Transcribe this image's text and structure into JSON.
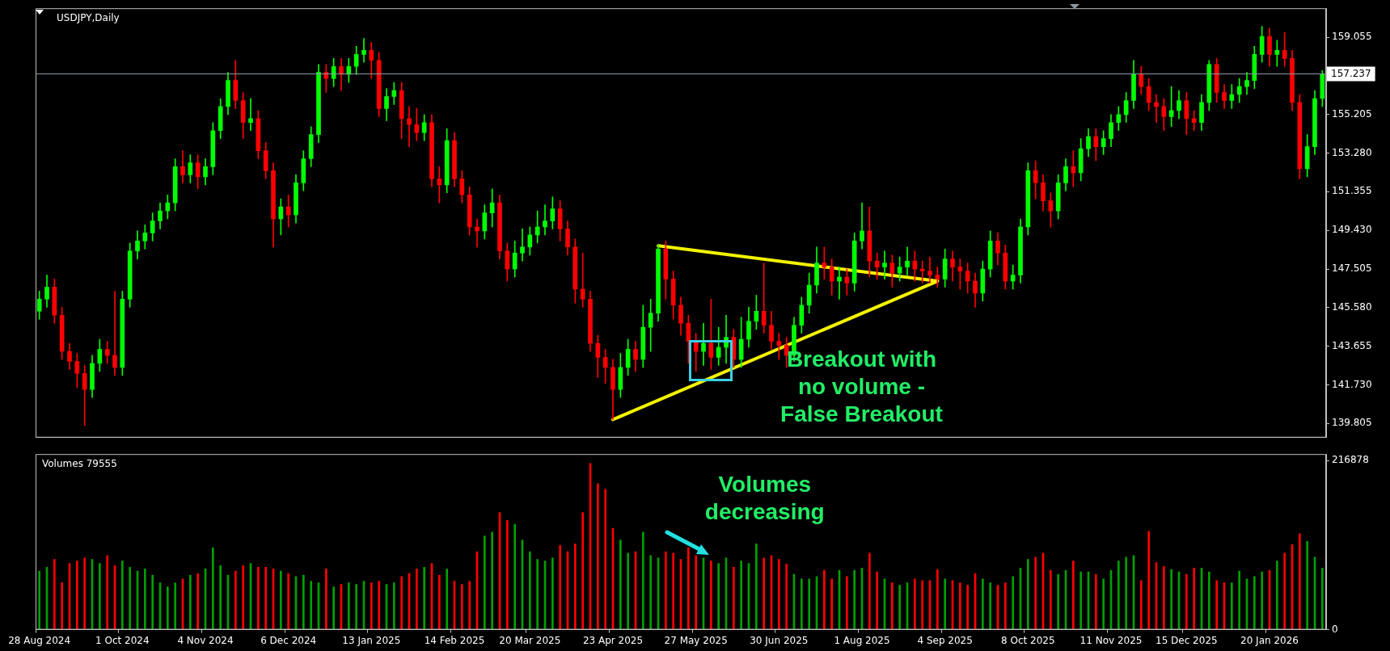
{
  "chart_data": [
    {
      "type": "candlestick",
      "title": "USDJPY,Daily",
      "tick_labels": "y",
      "grid": false,
      "legend": false,
      "categories": [
        null,
        null,
        null,
        null,
        null,
        null,
        null,
        null,
        null,
        null,
        null,
        null,
        null,
        null,
        null,
        null,
        null,
        null,
        null,
        null,
        null,
        null,
        null,
        null,
        null,
        null,
        null,
        null,
        null,
        null,
        null,
        null,
        null,
        null,
        null,
        null,
        null,
        null,
        null,
        null,
        null,
        null,
        null,
        null,
        null,
        null,
        null,
        null,
        null,
        null,
        null,
        null,
        null,
        null,
        null,
        null,
        null,
        null,
        null,
        null,
        null,
        null,
        null,
        null,
        null,
        null,
        null,
        null,
        null,
        null,
        null,
        null,
        null,
        null,
        null,
        null,
        null,
        null,
        null,
        null,
        null,
        null,
        null,
        null,
        null,
        null,
        null,
        null,
        null,
        null,
        null,
        null,
        null,
        null,
        null,
        null,
        null,
        null,
        null,
        null,
        null,
        null,
        null,
        null,
        null,
        null,
        null,
        null,
        null,
        null,
        null,
        null,
        null,
        null,
        null,
        null,
        null,
        null,
        null,
        null,
        null,
        null,
        null,
        null,
        null,
        null,
        null,
        null,
        null,
        null,
        null,
        null,
        null,
        null,
        null,
        null,
        null,
        null,
        null,
        null,
        null,
        null,
        null,
        null,
        null,
        null,
        null,
        null,
        null,
        null,
        null,
        null,
        null,
        null,
        null,
        null,
        null,
        null,
        null,
        null,
        null,
        null,
        null,
        null,
        null,
        null,
        null,
        null,
        null,
        null,
        null
      ],
      "ohlc": [
        [
          145.4,
          146.4,
          145.0,
          146.0
        ],
        [
          146.0,
          147.2,
          145.6,
          146.6
        ],
        [
          146.6,
          147.0,
          144.8,
          145.2
        ],
        [
          145.2,
          145.6,
          143.0,
          143.4
        ],
        [
          143.4,
          143.8,
          142.5,
          142.9
        ],
        [
          142.9,
          143.3,
          141.6,
          142.3
        ],
        [
          142.3,
          142.7,
          139.7,
          141.5
        ],
        [
          141.5,
          143.2,
          141.1,
          142.8
        ],
        [
          142.8,
          144.0,
          142.4,
          143.5
        ],
        [
          143.5,
          143.9,
          142.8,
          143.2
        ],
        [
          143.2,
          146.4,
          142.2,
          142.6
        ],
        [
          142.6,
          146.4,
          142.2,
          146.0
        ],
        [
          146.0,
          148.8,
          145.6,
          148.4
        ],
        [
          148.4,
          149.4,
          148.0,
          148.9
        ],
        [
          148.9,
          149.7,
          148.5,
          149.3
        ],
        [
          149.3,
          150.3,
          148.9,
          149.9
        ],
        [
          149.9,
          150.8,
          149.5,
          150.4
        ],
        [
          150.4,
          151.2,
          150.0,
          150.8
        ],
        [
          150.8,
          153.0,
          150.4,
          152.6
        ],
        [
          152.6,
          153.4,
          151.8,
          152.2
        ],
        [
          152.2,
          153.2,
          151.8,
          152.8
        ],
        [
          152.8,
          153.2,
          151.5,
          152.1
        ],
        [
          152.1,
          153.0,
          151.7,
          152.6
        ],
        [
          152.6,
          154.8,
          152.2,
          154.4
        ],
        [
          154.4,
          156.0,
          154.0,
          155.6
        ],
        [
          155.6,
          157.3,
          155.2,
          156.9
        ],
        [
          156.9,
          157.9,
          155.5,
          155.9
        ],
        [
          155.9,
          156.3,
          154.0,
          154.8
        ],
        [
          154.8,
          156.0,
          154.4,
          155.0
        ],
        [
          155.0,
          155.4,
          153.0,
          153.4
        ],
        [
          153.4,
          153.8,
          152.0,
          152.4
        ],
        [
          152.4,
          152.8,
          148.6,
          150.0
        ],
        [
          150.0,
          151.0,
          149.2,
          150.6
        ],
        [
          150.6,
          151.2,
          149.6,
          150.2
        ],
        [
          150.2,
          152.2,
          149.8,
          151.8
        ],
        [
          151.8,
          153.4,
          151.4,
          153.0
        ],
        [
          153.0,
          154.6,
          152.6,
          154.2
        ],
        [
          154.2,
          157.7,
          153.8,
          157.3
        ],
        [
          157.3,
          157.7,
          156.3,
          157.0
        ],
        [
          157.0,
          158.0,
          156.6,
          157.6
        ],
        [
          157.6,
          158.0,
          156.4,
          157.2
        ],
        [
          157.2,
          158.0,
          156.8,
          157.6
        ],
        [
          157.6,
          158.6,
          157.2,
          158.2
        ],
        [
          158.2,
          159.0,
          157.8,
          158.4
        ],
        [
          158.4,
          158.8,
          157.0,
          157.9
        ],
        [
          157.9,
          158.3,
          155.1,
          155.5
        ],
        [
          155.5,
          156.5,
          154.9,
          156.1
        ],
        [
          156.1,
          156.8,
          155.7,
          156.4
        ],
        [
          156.4,
          156.8,
          154.0,
          155.0
        ],
        [
          155.0,
          155.6,
          153.6,
          154.7
        ],
        [
          154.7,
          155.5,
          153.9,
          154.3
        ],
        [
          154.3,
          155.2,
          153.9,
          154.8
        ],
        [
          154.8,
          155.2,
          151.6,
          152.0
        ],
        [
          152.0,
          152.6,
          150.8,
          151.7
        ],
        [
          151.7,
          154.5,
          151.3,
          153.9
        ],
        [
          153.9,
          154.3,
          151.6,
          152.0
        ],
        [
          152.0,
          152.4,
          150.8,
          151.2
        ],
        [
          151.2,
          151.6,
          149.2,
          149.6
        ],
        [
          149.6,
          150.0,
          148.6,
          149.4
        ],
        [
          149.4,
          150.7,
          149.0,
          150.3
        ],
        [
          150.3,
          151.5,
          149.6,
          150.8
        ],
        [
          150.8,
          151.2,
          148.0,
          148.4
        ],
        [
          148.4,
          148.8,
          146.9,
          147.5
        ],
        [
          147.5,
          148.9,
          147.1,
          148.3
        ],
        [
          148.3,
          149.5,
          147.9,
          148.6
        ],
        [
          148.6,
          149.6,
          148.2,
          149.2
        ],
        [
          149.2,
          150.4,
          148.8,
          149.6
        ],
        [
          149.6,
          150.7,
          149.2,
          149.9
        ],
        [
          149.9,
          151.1,
          149.5,
          150.5
        ],
        [
          150.5,
          150.9,
          148.9,
          149.5
        ],
        [
          149.5,
          149.9,
          148.2,
          148.6
        ],
        [
          148.6,
          149.0,
          145.8,
          146.5
        ],
        [
          146.5,
          148.3,
          145.6,
          146.0
        ],
        [
          146.0,
          146.4,
          143.4,
          143.8
        ],
        [
          143.8,
          144.2,
          142.1,
          143.1
        ],
        [
          143.1,
          143.5,
          141.8,
          142.6
        ],
        [
          142.6,
          143.0,
          140.0,
          141.5
        ],
        [
          141.5,
          143.3,
          141.1,
          142.6
        ],
        [
          142.6,
          144.0,
          142.2,
          143.5
        ],
        [
          143.5,
          143.9,
          142.4,
          143.0
        ],
        [
          143.0,
          145.7,
          142.6,
          144.6
        ],
        [
          144.6,
          146.0,
          143.4,
          145.3
        ],
        [
          145.3,
          148.7,
          144.9,
          148.5
        ],
        [
          148.5,
          148.9,
          146.0,
          147.0
        ],
        [
          147.0,
          147.4,
          145.0,
          145.7
        ],
        [
          145.7,
          146.1,
          144.2,
          144.8
        ],
        [
          144.8,
          145.2,
          142.8,
          143.9
        ],
        [
          143.9,
          144.3,
          142.4,
          143.4
        ],
        [
          143.4,
          144.8,
          142.7,
          143.8
        ],
        [
          143.8,
          146.0,
          142.5,
          143.1
        ],
        [
          143.1,
          144.6,
          142.7,
          143.6
        ],
        [
          143.6,
          145.2,
          142.8,
          144.1
        ],
        [
          144.1,
          144.5,
          142.6,
          143.0
        ],
        [
          143.0,
          145.1,
          142.6,
          144.0
        ],
        [
          144.0,
          145.6,
          143.6,
          144.9
        ],
        [
          144.9,
          146.2,
          144.5,
          145.4
        ],
        [
          145.4,
          147.8,
          144.3,
          144.7
        ],
        [
          144.7,
          145.4,
          143.5,
          143.9
        ],
        [
          143.9,
          144.3,
          143.0,
          143.7
        ],
        [
          143.7,
          144.1,
          142.6,
          143.2
        ],
        [
          143.2,
          145.1,
          142.9,
          144.7
        ],
        [
          144.7,
          146.1,
          144.3,
          145.7
        ],
        [
          145.7,
          147.3,
          145.3,
          146.7
        ],
        [
          146.7,
          148.6,
          146.3,
          147.8
        ],
        [
          147.8,
          148.6,
          147.0,
          147.6
        ],
        [
          147.6,
          148.0,
          146.2,
          146.9
        ],
        [
          146.9,
          147.6,
          146.0,
          147.1
        ],
        [
          147.1,
          147.5,
          146.2,
          146.8
        ],
        [
          146.8,
          149.3,
          146.4,
          148.9
        ],
        [
          148.9,
          150.8,
          148.5,
          149.4
        ],
        [
          149.4,
          150.6,
          147.1,
          147.9
        ],
        [
          147.9,
          148.3,
          147.0,
          147.6
        ],
        [
          147.6,
          148.4,
          147.0,
          147.8
        ],
        [
          147.8,
          148.2,
          146.6,
          147.3
        ],
        [
          147.3,
          148.1,
          146.9,
          147.6
        ],
        [
          147.6,
          148.6,
          147.2,
          147.9
        ],
        [
          147.9,
          148.4,
          146.9,
          147.5
        ],
        [
          147.5,
          147.9,
          146.8,
          147.4
        ],
        [
          147.4,
          148.1,
          146.8,
          147.2
        ],
        [
          147.2,
          147.6,
          146.6,
          147.0
        ],
        [
          147.0,
          148.5,
          146.6,
          148.0
        ],
        [
          148.0,
          148.4,
          146.9,
          147.6
        ],
        [
          147.6,
          148.0,
          146.5,
          147.4
        ],
        [
          147.4,
          147.8,
          146.3,
          146.9
        ],
        [
          146.9,
          147.3,
          145.6,
          146.3
        ],
        [
          146.3,
          147.9,
          145.9,
          147.5
        ],
        [
          147.5,
          149.4,
          147.1,
          148.9
        ],
        [
          148.9,
          149.3,
          147.7,
          148.3
        ],
        [
          148.3,
          148.7,
          146.5,
          146.9
        ],
        [
          146.9,
          147.7,
          146.5,
          147.2
        ],
        [
          147.2,
          150.0,
          146.8,
          149.6
        ],
        [
          149.6,
          152.8,
          149.2,
          152.4
        ],
        [
          152.4,
          152.9,
          151.0,
          151.8
        ],
        [
          151.8,
          152.2,
          150.4,
          150.9
        ],
        [
          150.9,
          151.3,
          149.6,
          150.4
        ],
        [
          150.4,
          152.2,
          150.0,
          151.8
        ],
        [
          151.8,
          153.0,
          151.4,
          152.6
        ],
        [
          152.6,
          153.4,
          151.6,
          152.3
        ],
        [
          152.3,
          154.0,
          151.9,
          153.5
        ],
        [
          153.5,
          154.5,
          153.1,
          154.1
        ],
        [
          154.1,
          154.5,
          152.9,
          153.6
        ],
        [
          153.6,
          154.4,
          153.2,
          154.0
        ],
        [
          154.0,
          155.2,
          153.6,
          154.8
        ],
        [
          154.8,
          155.6,
          154.4,
          155.2
        ],
        [
          155.2,
          156.3,
          154.8,
          155.9
        ],
        [
          155.9,
          157.9,
          155.5,
          157.2
        ],
        [
          157.2,
          157.6,
          156.2,
          156.6
        ],
        [
          156.6,
          157.0,
          155.4,
          155.8
        ],
        [
          155.8,
          156.2,
          154.8,
          155.6
        ],
        [
          155.6,
          156.0,
          154.4,
          155.1
        ],
        [
          155.1,
          156.6,
          154.6,
          155.4
        ],
        [
          155.4,
          156.4,
          155.0,
          155.9
        ],
        [
          155.9,
          156.3,
          154.2,
          155.0
        ],
        [
          155.0,
          155.4,
          154.4,
          154.8
        ],
        [
          154.8,
          156.2,
          154.4,
          155.8
        ],
        [
          155.8,
          157.9,
          155.4,
          157.7
        ],
        [
          157.7,
          158.0,
          155.8,
          156.3
        ],
        [
          156.3,
          156.7,
          155.5,
          155.9
        ],
        [
          155.9,
          156.7,
          155.5,
          156.2
        ],
        [
          156.2,
          157.0,
          155.8,
          156.6
        ],
        [
          156.6,
          157.3,
          156.2,
          156.9
        ],
        [
          156.9,
          158.6,
          156.5,
          158.2
        ],
        [
          158.2,
          159.6,
          157.8,
          159.1
        ],
        [
          159.1,
          159.5,
          157.6,
          158.2
        ],
        [
          158.2,
          158.9,
          157.6,
          158.4
        ],
        [
          158.4,
          159.3,
          157.6,
          158.0
        ],
        [
          158.0,
          158.4,
          155.4,
          155.8
        ],
        [
          155.8,
          156.2,
          152.0,
          152.5
        ],
        [
          152.5,
          154.2,
          152.1,
          153.6
        ],
        [
          153.6,
          156.4,
          153.2,
          156.0
        ],
        [
          156.0,
          157.4,
          155.6,
          157.2
        ]
      ],
      "colors": [
        "#00ff00",
        "#00ff00",
        "#ff0000",
        "#ff0000",
        "#ff0000",
        "#ff0000",
        "#ff0000",
        "#00ff00",
        "#00ff00",
        "#ff0000",
        "#ff0000",
        "#00ff00",
        "#00ff00",
        "#00ff00",
        "#00ff00",
        "#00ff00",
        "#00ff00",
        "#00ff00",
        "#00ff00",
        "#ff0000",
        "#00ff00",
        "#ff0000",
        "#00ff00",
        "#00ff00",
        "#00ff00",
        "#00ff00",
        "#ff0000",
        "#ff0000",
        "#00ff00",
        "#ff0000",
        "#ff0000",
        "#ff0000",
        "#00ff00",
        "#ff0000",
        "#00ff00",
        "#00ff00",
        "#00ff00",
        "#00ff00",
        "#ff0000",
        "#00ff00",
        "#ff0000",
        "#00ff00",
        "#00ff00",
        "#00ff00",
        "#ff0000",
        "#ff0000",
        "#00ff00",
        "#00ff00",
        "#ff0000",
        "#ff0000",
        "#ff0000",
        "#00ff00",
        "#ff0000",
        "#ff0000",
        "#00ff00",
        "#ff0000",
        "#ff0000",
        "#ff0000",
        "#ff0000",
        "#00ff00",
        "#00ff00",
        "#ff0000",
        "#ff0000",
        "#00ff00",
        "#00ff00",
        "#00ff00",
        "#00ff00",
        "#00ff00",
        "#00ff00",
        "#ff0000",
        "#ff0000",
        "#ff0000",
        "#ff0000",
        "#ff0000",
        "#ff0000",
        "#ff0000",
        "#ff0000",
        "#00ff00",
        "#00ff00",
        "#ff0000",
        "#00ff00",
        "#00ff00",
        "#00ff00",
        "#ff0000",
        "#ff0000",
        "#ff0000",
        "#ff0000",
        "#ff0000",
        "#00ff00",
        "#ff0000",
        "#00ff00",
        "#00ff00",
        "#ff0000",
        "#00ff00",
        "#00ff00",
        "#00ff00",
        "#ff0000",
        "#ff0000",
        "#ff0000",
        "#ff0000",
        "#00ff00",
        "#00ff00",
        "#00ff00",
        "#00ff00",
        "#ff0000",
        "#ff0000",
        "#00ff00",
        "#ff0000",
        "#00ff00",
        "#00ff00",
        "#ff0000",
        "#ff0000",
        "#00ff00",
        "#ff0000",
        "#00ff00",
        "#00ff00",
        "#ff0000",
        "#ff0000",
        "#ff0000",
        "#ff0000",
        "#00ff00",
        "#ff0000",
        "#ff0000",
        "#ff0000",
        "#ff0000",
        "#00ff00",
        "#00ff00",
        "#ff0000",
        "#ff0000",
        "#00ff00",
        "#00ff00",
        "#00ff00",
        "#ff0000",
        "#ff0000",
        "#ff0000",
        "#00ff00",
        "#00ff00",
        "#ff0000",
        "#00ff00",
        "#00ff00",
        "#ff0000",
        "#00ff00",
        "#00ff00",
        "#00ff00",
        "#00ff00",
        "#00ff00",
        "#ff0000",
        "#ff0000",
        "#ff0000",
        "#ff0000",
        "#00ff00",
        "#00ff00",
        "#ff0000",
        "#ff0000",
        "#00ff00",
        "#00ff00",
        "#ff0000",
        "#ff0000",
        "#00ff00",
        "#00ff00",
        "#00ff00",
        "#00ff00",
        "#00ff00",
        "#ff0000",
        "#00ff00",
        "#ff0000",
        "#ff0000",
        "#ff0000",
        "#00ff00",
        "#00ff00",
        "#00ff00"
      ],
      "series": [
        {
          "type": "line",
          "color": "#f2f200",
          "marker": "none",
          "line_style": "solid",
          "values": [
            null,
            null,
            null,
            null,
            null,
            null,
            null,
            null,
            null,
            null,
            null,
            null,
            null,
            null,
            null,
            null,
            null,
            null,
            null,
            null,
            null,
            null,
            null,
            null,
            null,
            null,
            null,
            null,
            null,
            null,
            null,
            null,
            null,
            null,
            null,
            null,
            null,
            null,
            null,
            null,
            null,
            null,
            null,
            null,
            null,
            null,
            null,
            null,
            null,
            null,
            null,
            null,
            null,
            null,
            null,
            null,
            null,
            null,
            null,
            null,
            null,
            null,
            null,
            null,
            null,
            null,
            null,
            null,
            null,
            null,
            null,
            null,
            null,
            null,
            null,
            null,
            null,
            null,
            null,
            null,
            null,
            null,
            148.66,
            null,
            null,
            null,
            null,
            null,
            null,
            null,
            null,
            null,
            null,
            null,
            null,
            null,
            null,
            null,
            null,
            null,
            null,
            null,
            null,
            null,
            null,
            null,
            null,
            null,
            null,
            null,
            null,
            null,
            null,
            null,
            null,
            null,
            null,
            null,
            null,
            146.9,
            null,
            null,
            null,
            null,
            null,
            null,
            null,
            null,
            null,
            null,
            null,
            null,
            null,
            null,
            null,
            null,
            null,
            null,
            null,
            null,
            null,
            null,
            null,
            null,
            null,
            null,
            null,
            null,
            null,
            null,
            null,
            null,
            null,
            null,
            null,
            null,
            null,
            null,
            null,
            null,
            null,
            null,
            null,
            null,
            null,
            null,
            null,
            null,
            null,
            null,
            null
          ]
        },
        {
          "type": "line",
          "color": "#f2f200",
          "marker": "none",
          "line_style": "solid",
          "values": [
            null,
            null,
            null,
            null,
            null,
            null,
            null,
            null,
            null,
            null,
            null,
            null,
            null,
            null,
            null,
            null,
            null,
            null,
            null,
            null,
            null,
            null,
            null,
            null,
            null,
            null,
            null,
            null,
            null,
            null,
            null,
            null,
            null,
            null,
            null,
            null,
            null,
            null,
            null,
            null,
            null,
            null,
            null,
            null,
            null,
            null,
            null,
            null,
            null,
            null,
            null,
            null,
            null,
            null,
            null,
            null,
            null,
            null,
            null,
            null,
            null,
            null,
            null,
            null,
            null,
            null,
            null,
            null,
            null,
            null,
            null,
            null,
            null,
            null,
            null,
            null,
            140.0,
            null,
            null,
            null,
            null,
            null,
            null,
            null,
            null,
            null,
            null,
            null,
            null,
            null,
            null,
            null,
            null,
            null,
            null,
            null,
            null,
            null,
            null,
            null,
            null,
            null,
            null,
            null,
            null,
            null,
            null,
            null,
            null,
            null,
            null,
            null,
            null,
            null,
            null,
            null,
            null,
            null,
            null,
            146.9,
            null,
            null,
            null,
            null,
            null,
            null,
            null,
            null,
            null,
            null,
            null,
            null,
            null,
            null,
            null,
            null,
            null,
            null,
            null,
            null,
            null,
            null,
            null,
            null,
            null,
            null,
            null,
            null,
            null,
            null,
            null,
            null,
            null,
            null,
            null,
            null,
            null,
            null,
            null,
            null,
            null,
            null,
            null,
            null,
            null,
            null,
            null,
            null,
            null,
            null,
            null
          ]
        }
      ],
      "ylim": [
        139.1,
        160.5
      ],
      "yticks": [
        139.805,
        {
          "value": 141.73,
          "label": "141.730"
        },
        143.655,
        {
          "value": 145.58,
          "label": "145.580"
        },
        147.505,
        {
          "value": 149.43,
          "label": "149.430"
        },
        151.355,
        {
          "value": 153.28,
          "label": "153.280"
        },
        155.205,
        159.055
      ],
      "ref_lines": [
        {
          "axis": "y",
          "value": 157.237,
          "label": "157.237",
          "color": "#8c98a4"
        }
      ],
      "annotations": [
        "Breakout with no volume - False Breakout"
      ]
    },
    {
      "type": "bar",
      "title": "Volumes 79555",
      "grid": false,
      "legend": false,
      "categories": [
        "28 Aug 2024",
        null,
        null,
        null,
        null,
        null,
        null,
        null,
        null,
        null,
        null,
        "1 Oct 2024",
        null,
        null,
        null,
        null,
        null,
        null,
        null,
        null,
        null,
        null,
        "4 Nov 2024",
        null,
        null,
        null,
        null,
        null,
        null,
        null,
        null,
        null,
        null,
        "6 Dec 2024",
        null,
        null,
        null,
        null,
        null,
        null,
        null,
        null,
        null,
        null,
        "13 Jan 2025",
        null,
        null,
        null,
        null,
        null,
        null,
        null,
        null,
        null,
        null,
        "14 Feb 2025",
        null,
        null,
        null,
        null,
        null,
        null,
        null,
        null,
        null,
        "20 Mar 2025",
        null,
        null,
        null,
        null,
        null,
        null,
        null,
        null,
        null,
        null,
        "23 Apr 2025",
        null,
        null,
        null,
        null,
        null,
        null,
        null,
        null,
        null,
        null,
        "27 May 2025",
        null,
        null,
        null,
        null,
        null,
        null,
        null,
        null,
        null,
        null,
        "30 Jun 2025",
        null,
        null,
        null,
        null,
        null,
        null,
        null,
        null,
        null,
        null,
        "1 Aug 2025",
        null,
        null,
        null,
        null,
        null,
        null,
        null,
        null,
        null,
        null,
        "4 Sep 2025",
        null,
        null,
        null,
        null,
        null,
        null,
        null,
        null,
        null,
        null,
        "8 Oct 2025",
        null,
        null,
        null,
        null,
        null,
        null,
        null,
        null,
        null,
        null,
        "11 Nov 2025",
        null,
        null,
        null,
        null,
        null,
        null,
        null,
        null,
        null,
        "15 Dec 2025",
        null,
        null,
        null,
        null,
        null,
        null,
        null,
        null,
        null,
        null,
        "20 Jan 2026",
        null,
        null,
        null,
        null,
        null,
        null,
        null
      ],
      "values": [
        75000,
        80000,
        90000,
        60000,
        85000,
        88000,
        92000,
        90000,
        85000,
        95000,
        82000,
        88000,
        80000,
        75000,
        78000,
        70000,
        60000,
        55000,
        60000,
        65000,
        70000,
        72000,
        78000,
        105000,
        82000,
        70000,
        75000,
        82000,
        85000,
        80000,
        80000,
        78000,
        75000,
        72000,
        68000,
        70000,
        62000,
        60000,
        78000,
        55000,
        58000,
        60000,
        58000,
        62000,
        60000,
        62000,
        58000,
        60000,
        68000,
        72000,
        78000,
        80000,
        85000,
        70000,
        78000,
        62000,
        58000,
        62000,
        100000,
        120000,
        125000,
        150000,
        140000,
        135000,
        115000,
        100000,
        90000,
        88000,
        92000,
        108000,
        100000,
        110000,
        150000,
        213000,
        187000,
        180000,
        130000,
        115000,
        98000,
        100000,
        125000,
        95000,
        92000,
        100000,
        98000,
        90000,
        105000,
        95000,
        92000,
        88000,
        85000,
        92000,
        80000,
        88000,
        85000,
        110000,
        92000,
        95000,
        90000,
        84000,
        71000,
        65000,
        65000,
        68000,
        76000,
        65000,
        76000,
        68000,
        76000,
        79000,
        98000,
        74000,
        65000,
        60000,
        57000,
        60000,
        65000,
        63000,
        63000,
        77000,
        65000,
        63000,
        60000,
        57000,
        72000,
        65000,
        60000,
        57000,
        60000,
        68000,
        79000,
        90000,
        93000,
        98000,
        76000,
        71000,
        76000,
        88000,
        74000,
        74000,
        71000,
        65000,
        76000,
        88000,
        93000,
        95000,
        63000,
        126000,
        86000,
        81000,
        77000,
        74000,
        71000,
        79000,
        79000,
        74000,
        63000,
        60000,
        60000,
        75000,
        65000,
        68000,
        74000,
        76000,
        88000,
        98000,
        109000,
        123000,
        113000,
        93000,
        79000
      ],
      "colors": [
        "#00a000",
        "#00a000",
        "#ff0000",
        "#ff0000",
        "#ff0000",
        "#ff0000",
        "#ff0000",
        "#00a000",
        "#00a000",
        "#ff0000",
        "#ff0000",
        "#00a000",
        "#00a000",
        "#00a000",
        "#00a000",
        "#00a000",
        "#00a000",
        "#00a000",
        "#00a000",
        "#ff0000",
        "#00a000",
        "#ff0000",
        "#00a000",
        "#00a000",
        "#00a000",
        "#00a000",
        "#ff0000",
        "#ff0000",
        "#00a000",
        "#ff0000",
        "#ff0000",
        "#ff0000",
        "#00a000",
        "#ff0000",
        "#00a000",
        "#00a000",
        "#00a000",
        "#00a000",
        "#ff0000",
        "#00a000",
        "#ff0000",
        "#00a000",
        "#00a000",
        "#00a000",
        "#ff0000",
        "#ff0000",
        "#00a000",
        "#00a000",
        "#ff0000",
        "#ff0000",
        "#ff0000",
        "#00a000",
        "#ff0000",
        "#ff0000",
        "#00a000",
        "#ff0000",
        "#ff0000",
        "#ff0000",
        "#ff0000",
        "#00a000",
        "#00a000",
        "#ff0000",
        "#ff0000",
        "#00a000",
        "#00a000",
        "#00a000",
        "#00a000",
        "#00a000",
        "#00a000",
        "#ff0000",
        "#ff0000",
        "#ff0000",
        "#ff0000",
        "#ff0000",
        "#ff0000",
        "#ff0000",
        "#ff0000",
        "#00a000",
        "#00a000",
        "#ff0000",
        "#00a000",
        "#00a000",
        "#00a000",
        "#ff0000",
        "#ff0000",
        "#ff0000",
        "#ff0000",
        "#ff0000",
        "#00a000",
        "#ff0000",
        "#00a000",
        "#00a000",
        "#ff0000",
        "#00a000",
        "#00a000",
        "#00a000",
        "#ff0000",
        "#ff0000",
        "#ff0000",
        "#ff0000",
        "#00a000",
        "#00a000",
        "#00a000",
        "#00a000",
        "#ff0000",
        "#ff0000",
        "#00a000",
        "#ff0000",
        "#00a000",
        "#00a000",
        "#ff0000",
        "#ff0000",
        "#00a000",
        "#ff0000",
        "#00a000",
        "#00a000",
        "#ff0000",
        "#ff0000",
        "#ff0000",
        "#ff0000",
        "#00a000",
        "#ff0000",
        "#ff0000",
        "#ff0000",
        "#ff0000",
        "#00a000",
        "#00a000",
        "#ff0000",
        "#ff0000",
        "#00a000",
        "#00a000",
        "#00a000",
        "#ff0000",
        "#ff0000",
        "#ff0000",
        "#00a000",
        "#00a000",
        "#ff0000",
        "#00a000",
        "#00a000",
        "#ff0000",
        "#00a000",
        "#00a000",
        "#00a000",
        "#00a000",
        "#00a000",
        "#ff0000",
        "#ff0000",
        "#ff0000",
        "#ff0000",
        "#00a000",
        "#00a000",
        "#ff0000",
        "#ff0000",
        "#00a000",
        "#00a000",
        "#ff0000",
        "#ff0000",
        "#00a000",
        "#00a000",
        "#00a000",
        "#00a000",
        "#00a000",
        "#ff0000",
        "#00a000",
        "#ff0000",
        "#ff0000",
        "#ff0000",
        "#00a000",
        "#00a000",
        "#00a000"
      ],
      "ylim": [
        0,
        225000
      ],
      "yticks": [
        0,
        216878
      ],
      "annotations": [
        "Volumes decreasing"
      ]
    }
  ]
}
